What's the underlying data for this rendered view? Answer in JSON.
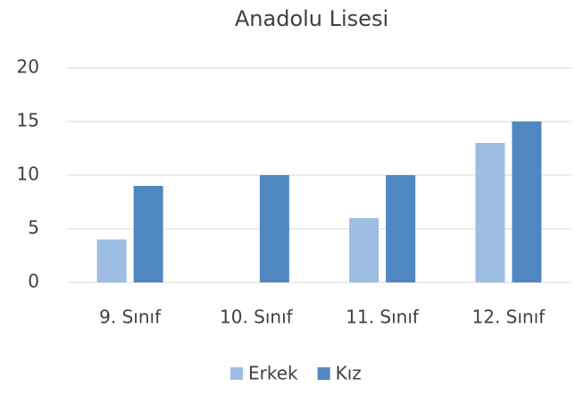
{
  "chart_data": {
    "type": "bar",
    "title": "Anadolu Lisesi",
    "categories": [
      "9. Sınıf",
      "10. Sınıf",
      "11. Sınıf",
      "12. Sınıf"
    ],
    "series": [
      {
        "name": "Erkek",
        "color": "#9dbde3",
        "values": [
          4,
          0,
          6,
          13
        ]
      },
      {
        "name": "Kız",
        "color": "#4f87c0",
        "values": [
          9,
          10,
          10,
          15
        ]
      }
    ],
    "ylim": [
      0,
      20
    ],
    "yticks": [
      0,
      5,
      10,
      15,
      20
    ],
    "grid": true,
    "legend": "bottom"
  }
}
